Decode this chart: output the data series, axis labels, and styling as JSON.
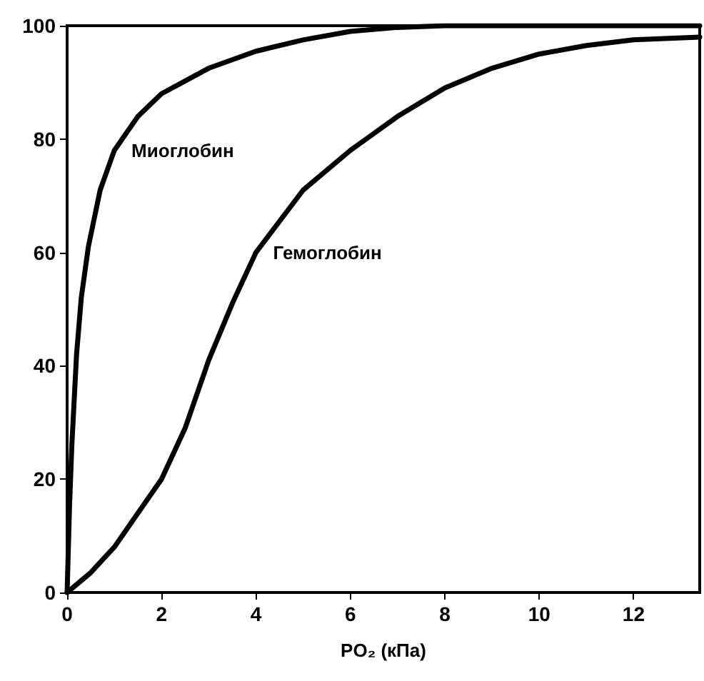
{
  "chart_data": {
    "type": "line",
    "xlabel": "PO₂ (кПа)",
    "series": [
      {
        "name": "Миоглобин",
        "color": "#000000",
        "x": [
          0,
          0.05,
          0.1,
          0.2,
          0.3,
          0.45,
          0.7,
          1,
          1.5,
          2,
          3,
          4,
          5,
          6,
          7,
          8,
          10,
          12,
          13.4
        ],
        "values": [
          0,
          15,
          26,
          42,
          52,
          61,
          71,
          78,
          84,
          88,
          92.5,
          95.5,
          97.5,
          99,
          99.7,
          100,
          100,
          100,
          100
        ]
      },
      {
        "name": "Гемоглобин",
        "color": "#000000",
        "x": [
          0,
          0.5,
          1,
          1.5,
          2,
          2.5,
          3,
          3.5,
          4,
          5,
          6,
          7,
          8,
          9,
          10,
          11,
          12,
          13.4
        ],
        "values": [
          0,
          3.5,
          8,
          14,
          20,
          29,
          41,
          51,
          60,
          71,
          78,
          84,
          89,
          92.5,
          95,
          96.5,
          97.5,
          98
        ]
      }
    ],
    "xlim": [
      0,
      13.4
    ],
    "xticks": [
      0,
      2,
      4,
      6,
      8,
      10,
      12
    ],
    "ylim": [
      0,
      100
    ],
    "yticks": [
      0,
      20,
      40,
      60,
      80,
      100
    ],
    "grid": false,
    "marker": "none",
    "line_style": "solid"
  }
}
